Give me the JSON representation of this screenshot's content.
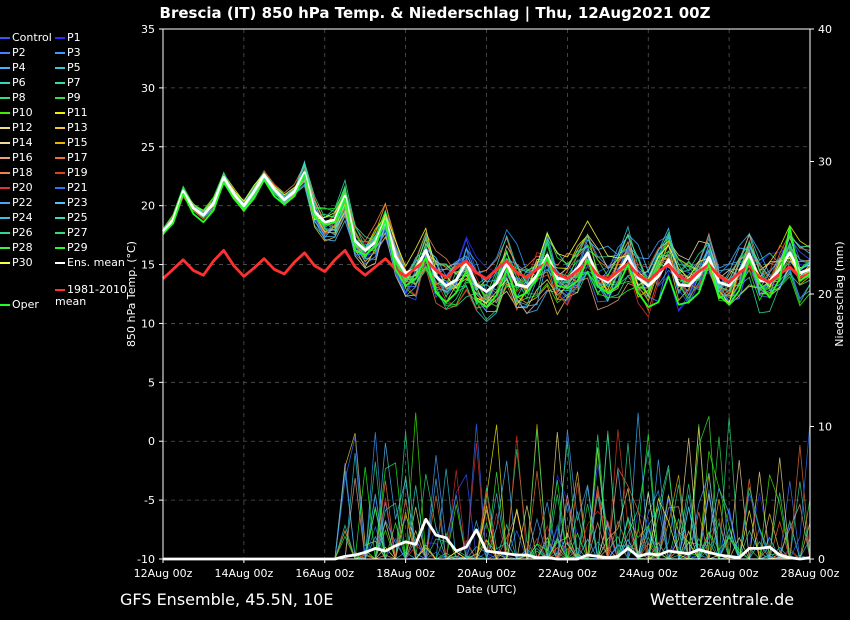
{
  "title": "Brescia  (IT)  850 hPa Temp. & Niederschlag | Thu, 12Aug2021 00Z",
  "footer_left": "GFS Ensemble, 45.5N, 10E",
  "footer_right": "Wetterzentrale.de",
  "legend": [
    {
      "label": "Control",
      "color": "#3c50ff"
    },
    {
      "label": "P1",
      "color": "#2a2aff"
    },
    {
      "label": "P2",
      "color": "#4a7dff"
    },
    {
      "label": "P3",
      "color": "#3a9aff"
    },
    {
      "label": "P4",
      "color": "#40b4ff"
    },
    {
      "label": "P5",
      "color": "#30c8d8"
    },
    {
      "label": "P6",
      "color": "#30d8c0"
    },
    {
      "label": "P7",
      "color": "#30e0a0"
    },
    {
      "label": "P8",
      "color": "#30e080"
    },
    {
      "label": "P9",
      "color": "#30e050"
    },
    {
      "label": "P10",
      "color": "#40f000"
    },
    {
      "label": "P11",
      "color": "#f0f000"
    },
    {
      "label": "P12",
      "color": "#f0e080"
    },
    {
      "label": "P13",
      "color": "#f0c840"
    },
    {
      "label": "P14",
      "color": "#f0d8a0"
    },
    {
      "label": "P15",
      "color": "#f0b000"
    },
    {
      "label": "P16",
      "color": "#f0a080"
    },
    {
      "label": "P17",
      "color": "#f07030"
    },
    {
      "label": "P18",
      "color": "#f08050"
    },
    {
      "label": "P19",
      "color": "#e04020"
    },
    {
      "label": "P20",
      "color": "#e03030"
    },
    {
      "label": "P21",
      "color": "#3070ff"
    },
    {
      "label": "P22",
      "color": "#50a0ff"
    },
    {
      "label": "P23",
      "color": "#50c0ff"
    },
    {
      "label": "P24",
      "color": "#40c0e0"
    },
    {
      "label": "P25",
      "color": "#30e0c0"
    },
    {
      "label": "P26",
      "color": "#30d890"
    },
    {
      "label": "P27",
      "color": "#30e070"
    },
    {
      "label": "P28",
      "color": "#40f040"
    },
    {
      "label": "P29",
      "color": "#20ff20"
    },
    {
      "label": "P30",
      "color": "#ffff40"
    },
    {
      "label": "Ens. mean",
      "color": "#ffffff"
    },
    {
      "label": "1981-2010\nmean",
      "color": "#ff3030"
    },
    {
      "label": "Oper",
      "color": "#20ff20"
    }
  ],
  "chart_data": {
    "type": "line",
    "title": "Brescia  (IT)  850 hPa Temp. & Niederschlag | Thu, 12Aug2021 00Z",
    "xlabel": "Date (UTC)",
    "ylabel": "850 hPa Temp. (°C)",
    "y2label": "Niederschlag (mm)",
    "x_ticks": [
      "12Aug 00z",
      "14Aug 00z",
      "16Aug 00z",
      "18Aug 00z",
      "20Aug 00z",
      "22Aug 00z",
      "24Aug 00z",
      "26Aug 00z",
      "28Aug 00z"
    ],
    "x_range_days": [
      0,
      16
    ],
    "ylim": [
      -10,
      35
    ],
    "y_ticks": [
      -10,
      -5,
      0,
      5,
      10,
      15,
      20,
      25,
      30,
      35
    ],
    "y2lim": [
      0,
      40
    ],
    "y2_ticks": [
      0,
      10,
      20,
      30,
      40
    ],
    "grid": true,
    "series": [
      {
        "name": "Ens. mean",
        "color": "#ffffff",
        "axis": "left",
        "step_hours": 6,
        "values": [
          17.8,
          18.8,
          21.2,
          19.8,
          19.2,
          20.2,
          22.4,
          21.0,
          20.0,
          21.2,
          22.6,
          21.4,
          20.5,
          21.2,
          22.8,
          19.5,
          18.6,
          18.8,
          20.8,
          17.0,
          16.2,
          16.9,
          18.8,
          15.7,
          14.3,
          14.6,
          16.2,
          14.0,
          13.2,
          13.7,
          15.2,
          13.3,
          12.7,
          13.4,
          15.1,
          13.3,
          13.1,
          14.1,
          15.8,
          13.8,
          13.8,
          14.7,
          16.0,
          14.0,
          13.5,
          14.3,
          15.7,
          13.9,
          13.2,
          14.0,
          15.4,
          13.3,
          13.2,
          14.1,
          15.6,
          13.5,
          13.2,
          14.3,
          15.9,
          13.6,
          13.6,
          14.6,
          16.0,
          14.3,
          14.6
        ]
      },
      {
        "name": "1981-2010 mean",
        "color": "#ff3030",
        "axis": "left",
        "step_hours": 6,
        "values": [
          13.8,
          14.6,
          15.4,
          14.5,
          14.1,
          15.3,
          16.2,
          14.9,
          14.0,
          14.7,
          15.5,
          14.6,
          14.2,
          15.2,
          16.0,
          14.9,
          14.4,
          15.4,
          16.2,
          14.8,
          14.1,
          14.8,
          15.5,
          14.6,
          14.0,
          14.7,
          15.4,
          14.5,
          13.9,
          14.7,
          15.3,
          14.3,
          13.8,
          14.6,
          15.3,
          14.3,
          13.9,
          14.6,
          15.2,
          14.2,
          13.8,
          14.5,
          15.2,
          14.1,
          13.7,
          14.4,
          15.1,
          14.1,
          13.6,
          14.4,
          15.0,
          14.0,
          13.6,
          14.4,
          15.0,
          14.0,
          13.5,
          14.3,
          14.9,
          13.9,
          13.5,
          14.2,
          14.8,
          13.9,
          14.2
        ]
      },
      {
        "name": "Oper",
        "color": "#20ff20",
        "axis": "left",
        "step_hours": 6,
        "values": [
          17.6,
          18.5,
          21.0,
          19.3,
          18.6,
          19.6,
          22.0,
          20.6,
          19.6,
          20.6,
          22.2,
          20.8,
          20.1,
          20.8,
          22.6,
          19.0,
          18.4,
          18.6,
          20.6,
          16.2,
          15.8,
          16.6,
          18.8,
          14.6,
          13.2,
          13.8,
          15.6,
          12.6,
          11.8,
          12.6,
          14.4,
          12.0,
          11.4,
          12.4,
          14.6,
          12.2,
          12.6,
          13.8,
          15.6,
          13.2,
          13.0,
          13.6,
          15.4,
          13.2,
          12.6,
          13.2,
          15.0,
          12.6,
          11.4,
          11.8,
          14.0,
          11.6,
          11.8,
          12.6,
          15.0,
          12.4,
          11.6,
          12.8,
          15.4,
          13.4,
          12.2,
          13.8,
          18.2,
          13.6,
          14.2
        ]
      },
      {
        "name": "Ens. mean precipitation",
        "color": "#ffffff",
        "axis": "right",
        "step_hours": 6,
        "values": [
          0,
          0,
          0,
          0,
          0,
          0,
          0,
          0,
          0,
          0,
          0,
          0,
          0,
          0,
          0,
          0,
          0,
          0,
          0.2,
          0.3,
          0.5,
          0.8,
          0.6,
          1.0,
          1.3,
          1.1,
          3.0,
          1.8,
          1.6,
          0.6,
          0.9,
          2.2,
          0.6,
          0.5,
          0.4,
          0.3,
          0.3,
          0.1,
          0.1,
          0,
          0,
          0,
          0.3,
          0.2,
          0.1,
          0.2,
          0.8,
          0.2,
          0.4,
          0.3,
          0.6,
          0.5,
          0.4,
          0.7,
          0.5,
          0.3,
          0.2,
          0.1,
          0.8,
          0.8,
          0.9,
          0.3,
          0.1,
          0,
          0.1
        ]
      }
    ]
  }
}
